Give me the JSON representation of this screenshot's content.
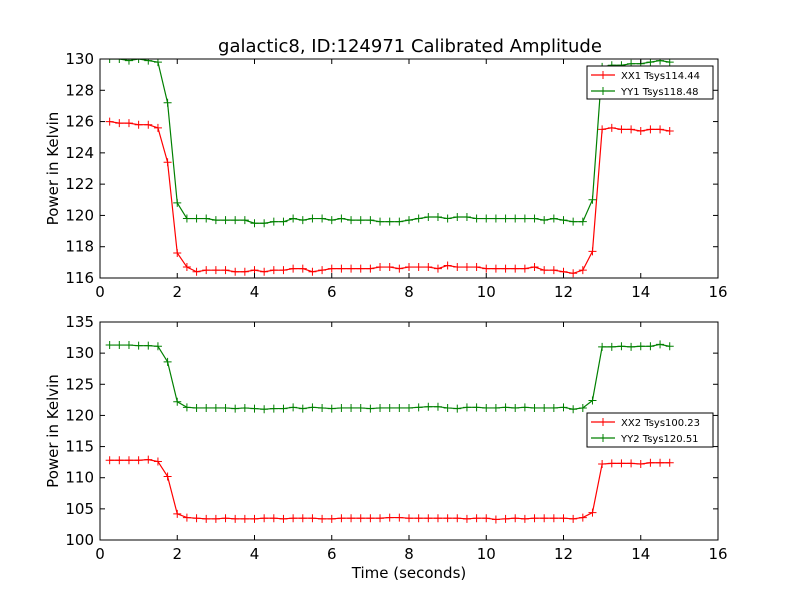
{
  "chart_data": [
    {
      "type": "line",
      "title": "galactic8, ID:124971 Calibrated Amplitude",
      "xlabel": "",
      "ylabel": "Power in Kelvin",
      "xlim": [
        0,
        16
      ],
      "ylim": [
        116,
        130
      ],
      "x_ticks": [
        0,
        2,
        4,
        6,
        8,
        10,
        12,
        14,
        16
      ],
      "y_ticks": [
        116,
        118,
        120,
        122,
        124,
        126,
        128,
        130
      ],
      "grid": false,
      "legend_position": "top-right",
      "x": [
        0.25,
        0.5,
        0.75,
        1.0,
        1.25,
        1.5,
        1.75,
        2.0,
        2.25,
        2.5,
        2.75,
        3.0,
        3.25,
        3.5,
        3.75,
        4.0,
        4.25,
        4.5,
        4.75,
        5.0,
        5.25,
        5.5,
        5.75,
        6.0,
        6.25,
        6.5,
        6.75,
        7.0,
        7.25,
        7.5,
        7.75,
        8.0,
        8.25,
        8.5,
        8.75,
        9.0,
        9.25,
        9.5,
        9.75,
        10.0,
        10.25,
        10.5,
        10.75,
        11.0,
        11.25,
        11.5,
        11.75,
        12.0,
        12.25,
        12.5,
        12.75,
        13.0,
        13.25,
        13.5,
        13.75,
        14.0,
        14.25,
        14.5,
        14.75
      ],
      "series": [
        {
          "name": "XX1 Tsys114.44",
          "color": "#ff0000",
          "values": [
            126.0,
            125.9,
            125.9,
            125.8,
            125.8,
            125.6,
            123.4,
            117.6,
            116.7,
            116.4,
            116.5,
            116.5,
            116.5,
            116.4,
            116.4,
            116.5,
            116.4,
            116.5,
            116.5,
            116.6,
            116.6,
            116.4,
            116.5,
            116.6,
            116.6,
            116.6,
            116.6,
            116.6,
            116.7,
            116.7,
            116.6,
            116.7,
            116.7,
            116.7,
            116.6,
            116.8,
            116.7,
            116.7,
            116.7,
            116.6,
            116.6,
            116.6,
            116.6,
            116.6,
            116.7,
            116.5,
            116.5,
            116.4,
            116.3,
            116.5,
            117.7,
            125.5,
            125.6,
            125.5,
            125.5,
            125.4,
            125.5,
            125.5,
            125.4
          ]
        },
        {
          "name": "YY1 Tsys118.48",
          "color": "#008000",
          "values": [
            130.0,
            130.0,
            129.9,
            130.0,
            129.9,
            129.8,
            127.2,
            120.8,
            119.8,
            119.8,
            119.8,
            119.7,
            119.7,
            119.7,
            119.7,
            119.5,
            119.5,
            119.6,
            119.6,
            119.8,
            119.7,
            119.8,
            119.8,
            119.7,
            119.8,
            119.7,
            119.7,
            119.7,
            119.6,
            119.6,
            119.6,
            119.7,
            119.8,
            119.9,
            119.9,
            119.8,
            119.9,
            119.9,
            119.8,
            119.8,
            119.8,
            119.8,
            119.8,
            119.8,
            119.8,
            119.7,
            119.8,
            119.7,
            119.6,
            119.6,
            121.0,
            129.5,
            129.6,
            129.6,
            129.7,
            129.7,
            129.8,
            129.9,
            129.8
          ]
        }
      ]
    },
    {
      "type": "line",
      "title": "",
      "xlabel": "Time (seconds)",
      "ylabel": "Power in Kelvin",
      "xlim": [
        0,
        16
      ],
      "ylim": [
        100,
        135
      ],
      "x_ticks": [
        0,
        2,
        4,
        6,
        8,
        10,
        12,
        14,
        16
      ],
      "y_ticks": [
        100,
        105,
        110,
        115,
        120,
        125,
        130,
        135
      ],
      "grid": false,
      "legend_position": "center-right",
      "x": [
        0.25,
        0.5,
        0.75,
        1.0,
        1.25,
        1.5,
        1.75,
        2.0,
        2.25,
        2.5,
        2.75,
        3.0,
        3.25,
        3.5,
        3.75,
        4.0,
        4.25,
        4.5,
        4.75,
        5.0,
        5.25,
        5.5,
        5.75,
        6.0,
        6.25,
        6.5,
        6.75,
        7.0,
        7.25,
        7.5,
        7.75,
        8.0,
        8.25,
        8.5,
        8.75,
        9.0,
        9.25,
        9.5,
        9.75,
        10.0,
        10.25,
        10.5,
        10.75,
        11.0,
        11.25,
        11.5,
        11.75,
        12.0,
        12.25,
        12.5,
        12.75,
        13.0,
        13.25,
        13.5,
        13.75,
        14.0,
        14.25,
        14.5,
        14.75
      ],
      "series": [
        {
          "name": "XX2 Tsys100.23",
          "color": "#ff0000",
          "values": [
            112.8,
            112.8,
            112.8,
            112.8,
            112.9,
            112.6,
            110.2,
            104.2,
            103.6,
            103.5,
            103.4,
            103.4,
            103.5,
            103.4,
            103.4,
            103.4,
            103.5,
            103.5,
            103.4,
            103.5,
            103.5,
            103.5,
            103.4,
            103.4,
            103.5,
            103.5,
            103.5,
            103.5,
            103.5,
            103.6,
            103.6,
            103.5,
            103.5,
            103.5,
            103.5,
            103.5,
            103.5,
            103.4,
            103.5,
            103.5,
            103.3,
            103.4,
            103.5,
            103.4,
            103.5,
            103.5,
            103.5,
            103.5,
            103.4,
            103.6,
            104.4,
            112.2,
            112.3,
            112.3,
            112.3,
            112.2,
            112.4,
            112.4,
            112.4
          ]
        },
        {
          "name": "YY2 Tsys120.51",
          "color": "#008000",
          "values": [
            131.3,
            131.3,
            131.3,
            131.2,
            131.2,
            131.1,
            128.6,
            122.2,
            121.3,
            121.2,
            121.2,
            121.2,
            121.2,
            121.1,
            121.2,
            121.1,
            121.0,
            121.1,
            121.1,
            121.3,
            121.1,
            121.3,
            121.2,
            121.1,
            121.2,
            121.2,
            121.2,
            121.1,
            121.2,
            121.2,
            121.2,
            121.2,
            121.3,
            121.4,
            121.4,
            121.2,
            121.1,
            121.3,
            121.3,
            121.2,
            121.2,
            121.3,
            121.2,
            121.3,
            121.2,
            121.2,
            121.2,
            121.3,
            121.0,
            121.2,
            122.4,
            131.0,
            131.0,
            131.1,
            131.0,
            131.1,
            131.1,
            131.4,
            131.1
          ]
        }
      ]
    }
  ]
}
